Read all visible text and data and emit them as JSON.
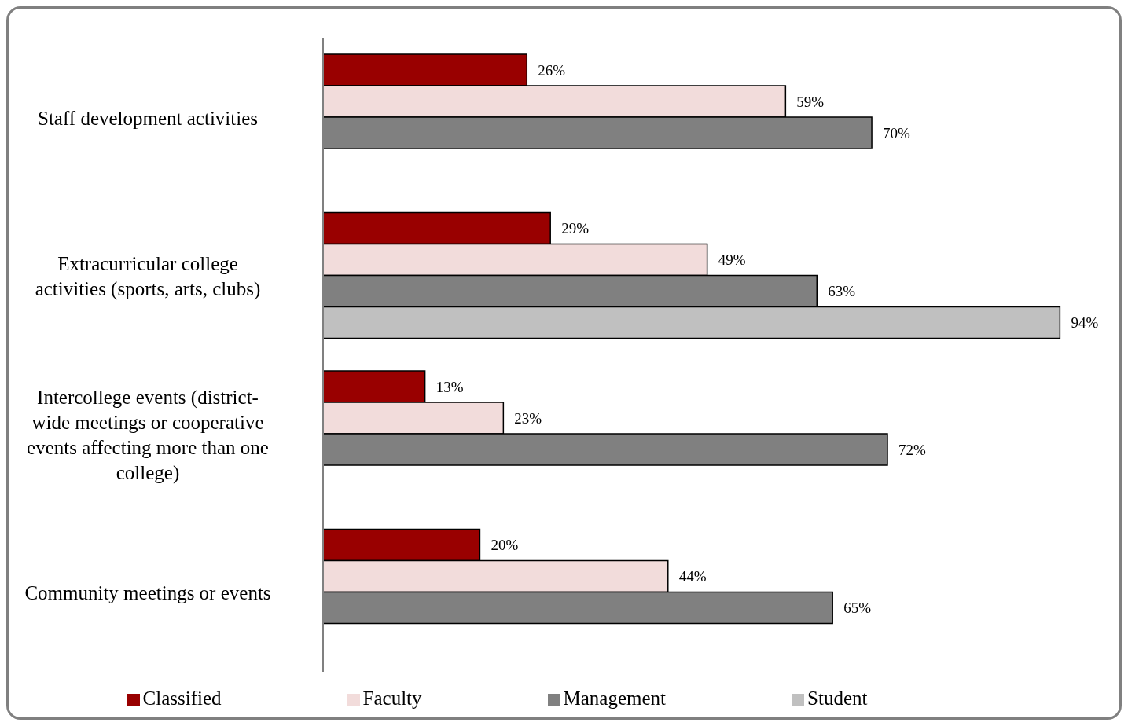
{
  "chart_data": {
    "type": "bar",
    "orientation": "horizontal",
    "categories": [
      "Staff development activities",
      "Extracurricular college activities (sports, arts, clubs)",
      "Intercollege events (district-wide meetings or cooperative events affecting more than one college)",
      "Community meetings or events"
    ],
    "series": [
      {
        "name": "Classified",
        "color": "#990000",
        "values": [
          26,
          29,
          13,
          20
        ],
        "value_labels": [
          "26%",
          "29%",
          "13%",
          "20%"
        ]
      },
      {
        "name": "Faculty",
        "color": "#f2dcdb",
        "values": [
          59,
          49,
          23,
          44
        ],
        "value_labels": [
          "59%",
          "49%",
          "23%",
          "44%"
        ]
      },
      {
        "name": "Management",
        "color": "#808080",
        "values": [
          70,
          63,
          72,
          65
        ],
        "value_labels": [
          "70%",
          "63%",
          "72%",
          "65%"
        ]
      },
      {
        "name": "Student",
        "color": "#c0c0c0",
        "values": [
          null,
          94,
          null,
          null
        ],
        "value_labels": [
          null,
          "94%",
          null,
          null
        ]
      }
    ],
    "legend": "bottom",
    "grid": false
  }
}
